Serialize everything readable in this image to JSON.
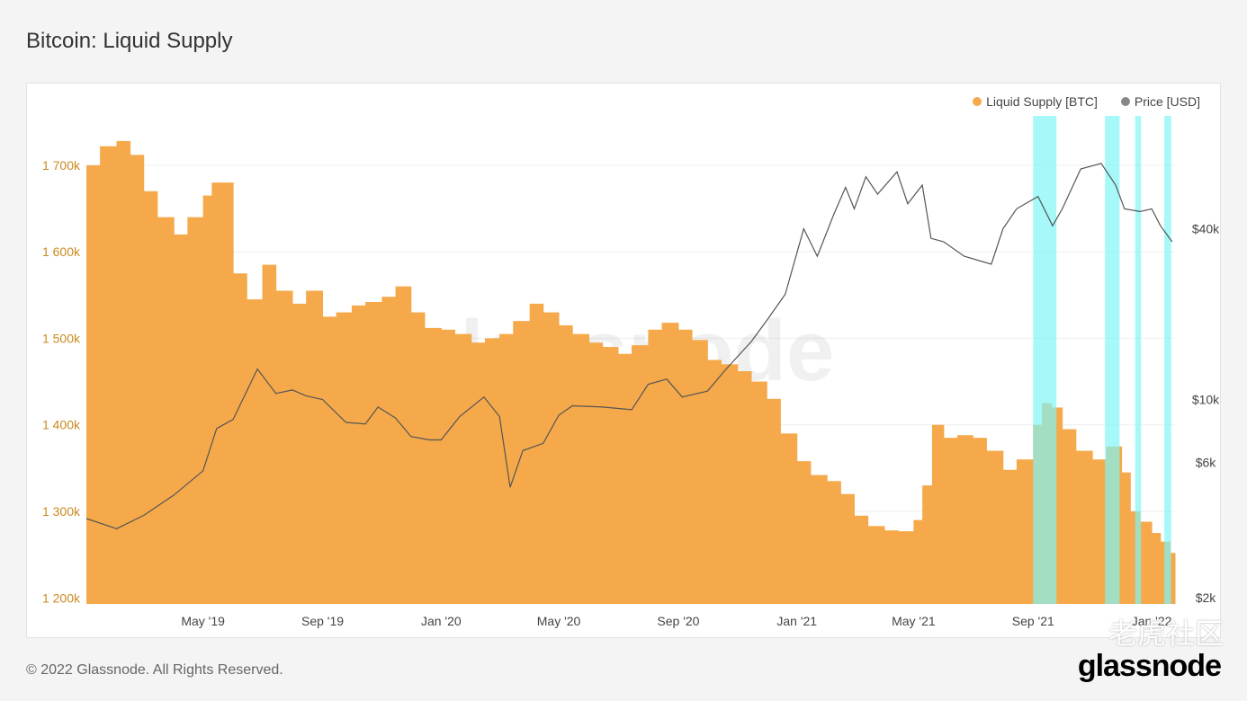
{
  "page": {
    "title": "Bitcoin: Liquid Supply",
    "copyright": "© 2022 Glassnode. All Rights Reserved.",
    "logo": "glassnode",
    "watermark": "glassnode",
    "community_mark": "老虎社区"
  },
  "legend": {
    "items": [
      {
        "label": "Liquid Supply [BTC]",
        "color": "#f5a94a"
      },
      {
        "label": "Price [USD]",
        "color": "#888888"
      }
    ]
  },
  "chart_data": {
    "type": "bar",
    "title": "Bitcoin: Liquid Supply",
    "left_axis": {
      "ticks": [
        {
          "value": 1200000,
          "label": "1 200k"
        },
        {
          "value": 1300000,
          "label": "1 300k"
        },
        {
          "value": 1400000,
          "label": "1 400k"
        },
        {
          "value": 1500000,
          "label": "1 500k"
        },
        {
          "value": 1600000,
          "label": "1 600k"
        },
        {
          "value": 1700000,
          "label": "1 700k"
        }
      ],
      "range": [
        1193000,
        1757000
      ],
      "color": "#c98a1e"
    },
    "right_axis": {
      "scale": "log",
      "ticks": [
        {
          "value": 2000,
          "label": "$2k"
        },
        {
          "value": 6000,
          "label": "$6k"
        },
        {
          "value": 10000,
          "label": "$10k"
        },
        {
          "value": 40000,
          "label": "$40k"
        }
      ],
      "range": [
        1900,
        100000
      ]
    },
    "x_axis": {
      "range": [
        "2019-01-01",
        "2022-01-25"
      ],
      "ticks": [
        {
          "date": "2019-05-01",
          "label": "May '19"
        },
        {
          "date": "2019-09-01",
          "label": "Sep '19"
        },
        {
          "date": "2020-01-01",
          "label": "Jan '20"
        },
        {
          "date": "2020-05-01",
          "label": "May '20"
        },
        {
          "date": "2020-09-01",
          "label": "Sep '20"
        },
        {
          "date": "2021-01-01",
          "label": "Jan '21"
        },
        {
          "date": "2021-05-01",
          "label": "May '21"
        },
        {
          "date": "2021-09-01",
          "label": "Sep '21"
        },
        {
          "date": "2022-01-01",
          "label": "Jan '22"
        }
      ]
    },
    "grid": true,
    "legend_position": "top-right",
    "series": [
      {
        "name": "Liquid Supply [BTC]",
        "kind": "bar",
        "color": "#f5a94a",
        "points": [
          [
            "2019-01-01",
            1700000
          ],
          [
            "2019-01-15",
            1722000
          ],
          [
            "2019-02-01",
            1728000
          ],
          [
            "2019-02-15",
            1712000
          ],
          [
            "2019-03-01",
            1670000
          ],
          [
            "2019-03-15",
            1640000
          ],
          [
            "2019-04-01",
            1620000
          ],
          [
            "2019-04-15",
            1640000
          ],
          [
            "2019-05-01",
            1665000
          ],
          [
            "2019-05-10",
            1680000
          ],
          [
            "2019-06-01",
            1575000
          ],
          [
            "2019-06-15",
            1545000
          ],
          [
            "2019-07-01",
            1585000
          ],
          [
            "2019-07-15",
            1555000
          ],
          [
            "2019-08-01",
            1540000
          ],
          [
            "2019-08-15",
            1555000
          ],
          [
            "2019-09-01",
            1525000
          ],
          [
            "2019-09-15",
            1530000
          ],
          [
            "2019-10-01",
            1538000
          ],
          [
            "2019-10-15",
            1542000
          ],
          [
            "2019-11-01",
            1548000
          ],
          [
            "2019-11-15",
            1560000
          ],
          [
            "2019-12-01",
            1530000
          ],
          [
            "2019-12-15",
            1512000
          ],
          [
            "2020-01-01",
            1510000
          ],
          [
            "2020-01-15",
            1505000
          ],
          [
            "2020-02-01",
            1495000
          ],
          [
            "2020-02-15",
            1500000
          ],
          [
            "2020-03-01",
            1505000
          ],
          [
            "2020-03-15",
            1520000
          ],
          [
            "2020-04-01",
            1540000
          ],
          [
            "2020-04-15",
            1530000
          ],
          [
            "2020-05-01",
            1515000
          ],
          [
            "2020-05-15",
            1505000
          ],
          [
            "2020-06-01",
            1495000
          ],
          [
            "2020-06-15",
            1490000
          ],
          [
            "2020-07-01",
            1482000
          ],
          [
            "2020-07-15",
            1492000
          ],
          [
            "2020-08-01",
            1510000
          ],
          [
            "2020-08-15",
            1518000
          ],
          [
            "2020-09-01",
            1510000
          ],
          [
            "2020-09-15",
            1498000
          ],
          [
            "2020-10-01",
            1475000
          ],
          [
            "2020-10-15",
            1470000
          ],
          [
            "2020-11-01",
            1462000
          ],
          [
            "2020-11-15",
            1450000
          ],
          [
            "2020-12-01",
            1430000
          ],
          [
            "2020-12-15",
            1390000
          ],
          [
            "2021-01-01",
            1358000
          ],
          [
            "2021-01-15",
            1342000
          ],
          [
            "2021-02-01",
            1335000
          ],
          [
            "2021-02-15",
            1320000
          ],
          [
            "2021-03-01",
            1295000
          ],
          [
            "2021-03-15",
            1283000
          ],
          [
            "2021-04-01",
            1278000
          ],
          [
            "2021-04-15",
            1277000
          ],
          [
            "2021-05-01",
            1290000
          ],
          [
            "2021-05-10",
            1330000
          ],
          [
            "2021-05-20",
            1400000
          ],
          [
            "2021-06-01",
            1385000
          ],
          [
            "2021-06-15",
            1388000
          ],
          [
            "2021-07-01",
            1385000
          ],
          [
            "2021-07-15",
            1370000
          ],
          [
            "2021-08-01",
            1348000
          ],
          [
            "2021-08-15",
            1360000
          ],
          [
            "2021-09-01",
            1400000
          ],
          [
            "2021-09-10",
            1425000
          ],
          [
            "2021-09-20",
            1420000
          ],
          [
            "2021-10-01",
            1395000
          ],
          [
            "2021-10-15",
            1370000
          ],
          [
            "2021-11-01",
            1360000
          ],
          [
            "2021-11-15",
            1375000
          ],
          [
            "2021-12-01",
            1345000
          ],
          [
            "2021-12-10",
            1300000
          ],
          [
            "2021-12-20",
            1288000
          ],
          [
            "2022-01-01",
            1275000
          ],
          [
            "2022-01-10",
            1265000
          ],
          [
            "2022-01-20",
            1252000
          ]
        ]
      },
      {
        "name": "Price [USD]",
        "kind": "line",
        "color": "#555555",
        "points": [
          [
            "2019-01-01",
            3800
          ],
          [
            "2019-02-01",
            3500
          ],
          [
            "2019-03-01",
            3900
          ],
          [
            "2019-04-01",
            4600
          ],
          [
            "2019-05-01",
            5600
          ],
          [
            "2019-05-15",
            7900
          ],
          [
            "2019-06-01",
            8500
          ],
          [
            "2019-06-26",
            12800
          ],
          [
            "2019-07-15",
            10500
          ],
          [
            "2019-08-01",
            10800
          ],
          [
            "2019-08-15",
            10300
          ],
          [
            "2019-09-01",
            10000
          ],
          [
            "2019-09-25",
            8300
          ],
          [
            "2019-10-15",
            8200
          ],
          [
            "2019-10-28",
            9400
          ],
          [
            "2019-11-15",
            8600
          ],
          [
            "2019-12-01",
            7400
          ],
          [
            "2019-12-20",
            7200
          ],
          [
            "2020-01-01",
            7200
          ],
          [
            "2020-01-20",
            8700
          ],
          [
            "2020-02-14",
            10200
          ],
          [
            "2020-03-01",
            8700
          ],
          [
            "2020-03-12",
            4900
          ],
          [
            "2020-03-25",
            6600
          ],
          [
            "2020-04-15",
            7000
          ],
          [
            "2020-05-01",
            8800
          ],
          [
            "2020-05-15",
            9500
          ],
          [
            "2020-06-15",
            9400
          ],
          [
            "2020-07-15",
            9200
          ],
          [
            "2020-08-01",
            11300
          ],
          [
            "2020-08-20",
            11800
          ],
          [
            "2020-09-05",
            10200
          ],
          [
            "2020-10-01",
            10700
          ],
          [
            "2020-10-21",
            12900
          ],
          [
            "2020-11-15",
            16000
          ],
          [
            "2020-12-01",
            19000
          ],
          [
            "2020-12-20",
            23500
          ],
          [
            "2021-01-08",
            40000
          ],
          [
            "2021-01-22",
            32000
          ],
          [
            "2021-02-08",
            45000
          ],
          [
            "2021-02-20",
            56000
          ],
          [
            "2021-03-01",
            47000
          ],
          [
            "2021-03-13",
            61000
          ],
          [
            "2021-03-25",
            53000
          ],
          [
            "2021-04-14",
            63500
          ],
          [
            "2021-04-25",
            49000
          ],
          [
            "2021-05-10",
            57000
          ],
          [
            "2021-05-19",
            37000
          ],
          [
            "2021-06-01",
            36000
          ],
          [
            "2021-06-22",
            32000
          ],
          [
            "2021-07-20",
            30000
          ],
          [
            "2021-08-01",
            40000
          ],
          [
            "2021-08-15",
            47000
          ],
          [
            "2021-09-06",
            52000
          ],
          [
            "2021-09-21",
            41000
          ],
          [
            "2021-10-01",
            47000
          ],
          [
            "2021-10-20",
            65000
          ],
          [
            "2021-11-10",
            68000
          ],
          [
            "2021-11-25",
            57000
          ],
          [
            "2021-12-04",
            47000
          ],
          [
            "2021-12-20",
            46000
          ],
          [
            "2022-01-01",
            47000
          ],
          [
            "2022-01-10",
            41000
          ],
          [
            "2022-01-22",
            36000
          ]
        ]
      }
    ],
    "highlights": [
      {
        "start": "2021-09-01",
        "end": "2021-09-25",
        "color": "#80f5f7"
      },
      {
        "start": "2021-11-14",
        "end": "2021-11-29",
        "color": "#80f5f7"
      },
      {
        "start": "2021-12-15",
        "end": "2021-12-21",
        "color": "#80f5f7"
      },
      {
        "start": "2022-01-14",
        "end": "2022-01-21",
        "color": "#80f5f7"
      }
    ]
  }
}
